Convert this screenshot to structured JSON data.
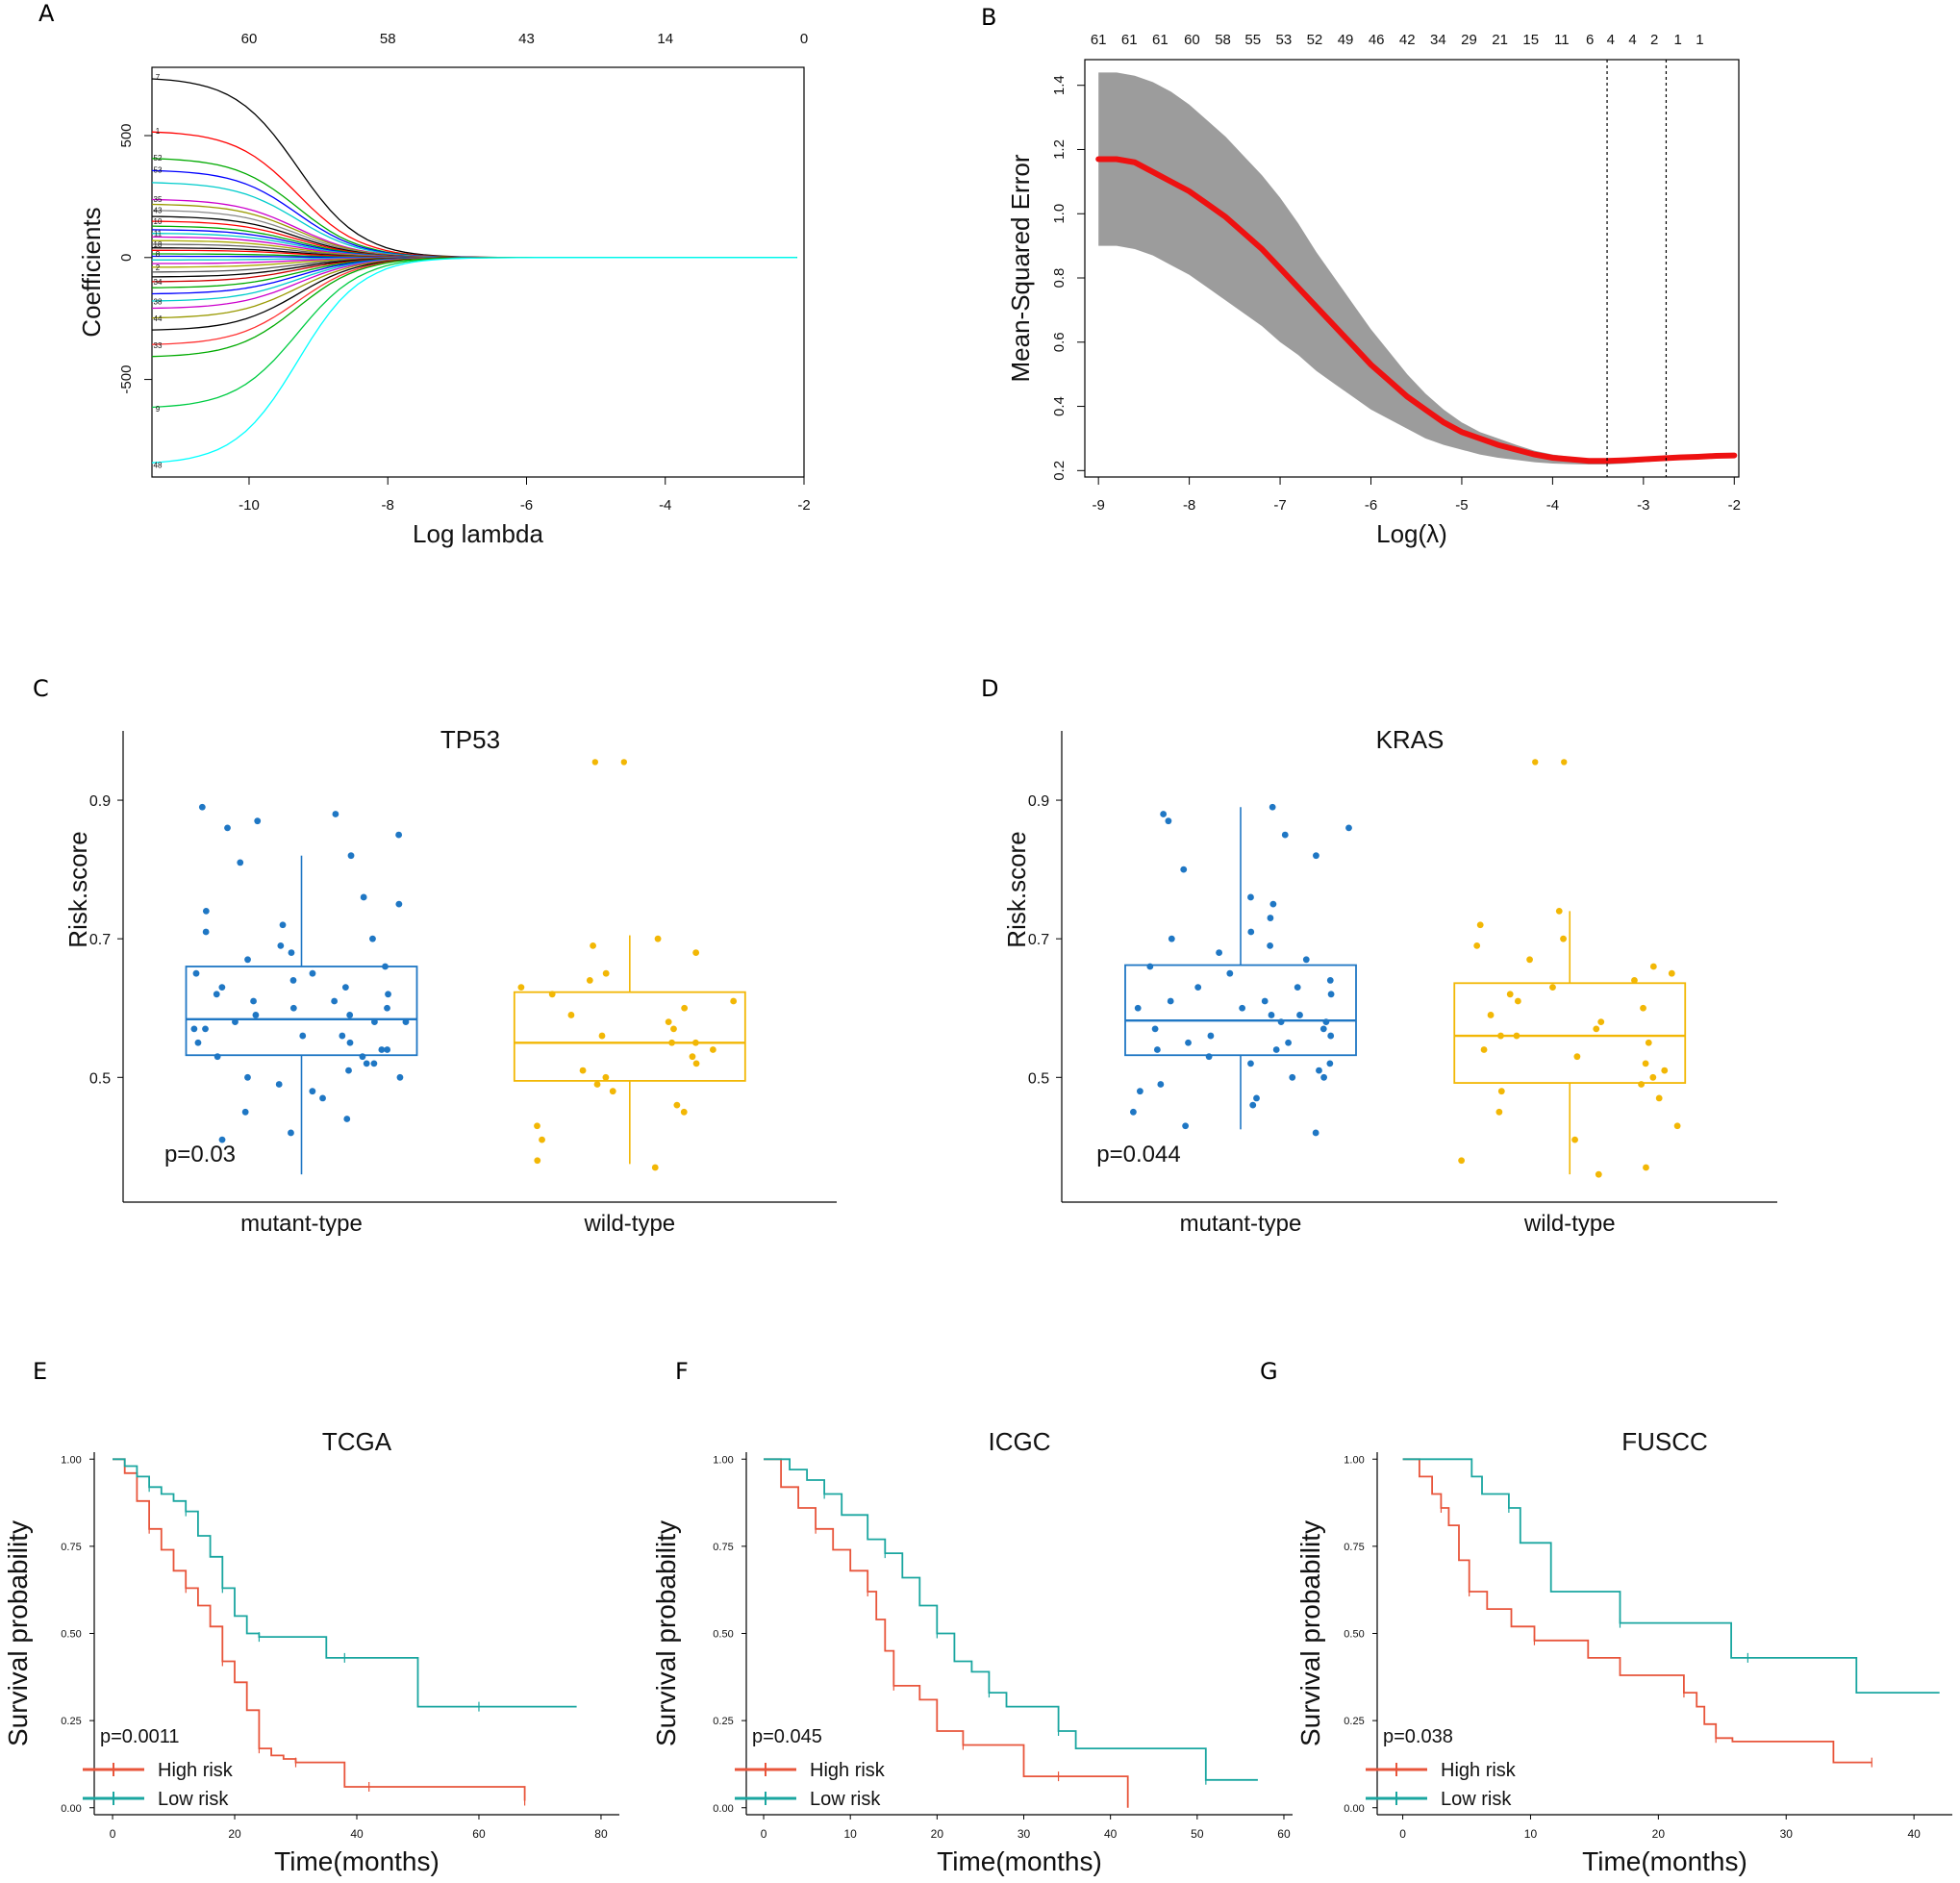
{
  "figure_labels": [
    "A",
    "B",
    "C",
    "D",
    "E",
    "F",
    "G"
  ],
  "colors": {
    "blue": "#1f77c4",
    "yellow": "#f2b705",
    "red": "#e8553b",
    "teal": "#1aa6a0",
    "mse_red": "#ee1111",
    "band": "#9c9c9c"
  },
  "chart_data": [
    {
      "panel": "A",
      "type": "line",
      "title": "",
      "xlabel": "Log lambda",
      "ylabel": "Coefficients",
      "xlim": [
        -11.4,
        -2
      ],
      "ylim": [
        -900,
        780
      ],
      "xticks": [
        -10,
        -8,
        -6,
        -4,
        -2
      ],
      "yticks": [
        -500,
        0,
        500
      ],
      "top_axis": {
        "positions": [
          -10,
          -8,
          -6,
          -4,
          -2
        ],
        "labels": [
          "60",
          "58",
          "43",
          "14",
          "0"
        ]
      },
      "paths_start_values": [
        740,
        520,
        410,
        360,
        310,
        240,
        220,
        195,
        170,
        150,
        130,
        115,
        100,
        85,
        70,
        55,
        40,
        30,
        15,
        5,
        -10,
        -25,
        -40,
        -60,
        -80,
        -100,
        -125,
        -150,
        -180,
        -210,
        -250,
        -300,
        -360,
        -410,
        -620,
        -850
      ],
      "path_label_values": [
        740,
        520,
        410,
        360,
        240,
        195,
        150,
        100,
        55,
        15,
        -40,
        -100,
        -180,
        -250,
        -360,
        -620,
        -850
      ],
      "path_labels": [
        "7",
        "1",
        "52",
        "53",
        "35",
        "43",
        "10",
        "11",
        "18",
        "8",
        "2",
        "34",
        "38",
        "44",
        "33",
        "9",
        "48"
      ]
    },
    {
      "panel": "B",
      "type": "line",
      "xlabel": "Log(λ)",
      "ylabel": "Mean-Squared Error",
      "xlim": [
        -9.15,
        -1.95
      ],
      "ylim": [
        0.18,
        1.48
      ],
      "xticks": [
        -9,
        -8,
        -7,
        -6,
        -5,
        -4,
        -3,
        -2
      ],
      "yticks": [
        0.2,
        0.4,
        0.6,
        0.8,
        1.0,
        1.2,
        1.4
      ],
      "top_axis": {
        "positions": [
          -9.0,
          -8.66,
          -8.32,
          -7.97,
          -7.63,
          -7.3,
          -6.96,
          -6.62,
          -6.28,
          -5.94,
          -5.6,
          -5.26,
          -4.92,
          -4.58,
          -4.24,
          -3.9,
          -3.59,
          -3.36,
          -3.12,
          -2.88,
          -2.62,
          -2.38
        ],
        "labels": [
          "61",
          "61",
          "61",
          "60",
          "58",
          "55",
          "53",
          "52",
          "49",
          "46",
          "42",
          "34",
          "29",
          "21",
          "15",
          "11",
          "6",
          "4",
          "4",
          "2",
          "1",
          "1"
        ]
      },
      "vlines": [
        -3.4,
        -2.75
      ],
      "x": [
        -9.0,
        -8.8,
        -8.6,
        -8.4,
        -8.2,
        -8.0,
        -7.8,
        -7.6,
        -7.4,
        -7.2,
        -7.0,
        -6.8,
        -6.6,
        -6.4,
        -6.2,
        -6.0,
        -5.8,
        -5.6,
        -5.4,
        -5.2,
        -5.0,
        -4.8,
        -4.6,
        -4.4,
        -4.2,
        -4.0,
        -3.8,
        -3.6,
        -3.4,
        -3.2,
        -3.0,
        -2.8,
        -2.6,
        -2.4,
        -2.2,
        -2.0
      ],
      "mse": [
        1.17,
        1.17,
        1.16,
        1.13,
        1.1,
        1.07,
        1.03,
        0.99,
        0.94,
        0.89,
        0.83,
        0.77,
        0.71,
        0.65,
        0.59,
        0.53,
        0.48,
        0.43,
        0.39,
        0.35,
        0.32,
        0.3,
        0.28,
        0.265,
        0.25,
        0.24,
        0.235,
        0.23,
        0.23,
        0.232,
        0.235,
        0.238,
        0.241,
        0.243,
        0.246,
        0.247
      ],
      "upper": [
        1.44,
        1.44,
        1.43,
        1.41,
        1.38,
        1.34,
        1.29,
        1.24,
        1.18,
        1.12,
        1.05,
        0.97,
        0.88,
        0.8,
        0.72,
        0.64,
        0.57,
        0.5,
        0.44,
        0.39,
        0.35,
        0.32,
        0.3,
        0.28,
        0.262,
        0.25,
        0.243,
        0.238,
        0.237,
        0.239,
        0.241,
        0.244,
        0.247,
        0.249,
        0.251,
        0.252
      ],
      "lower": [
        0.9,
        0.9,
        0.89,
        0.87,
        0.84,
        0.81,
        0.77,
        0.73,
        0.69,
        0.65,
        0.6,
        0.56,
        0.51,
        0.47,
        0.43,
        0.39,
        0.36,
        0.33,
        0.3,
        0.28,
        0.265,
        0.25,
        0.24,
        0.233,
        0.226,
        0.222,
        0.22,
        0.219,
        0.219,
        0.222,
        0.226,
        0.23,
        0.233,
        0.236,
        0.24,
        0.242
      ]
    },
    {
      "panel": "C",
      "type": "box",
      "title": "TP53",
      "ylabel": "Risk.score",
      "ylim": [
        0.32,
        1.0
      ],
      "yticks": [
        0.5,
        0.7,
        0.9
      ],
      "pvalue": "p=0.03",
      "groups": [
        {
          "name": "mutant-type",
          "q1": 0.532,
          "median": 0.584,
          "q3": 0.66,
          "whisker_low": 0.36,
          "whisker_high": 0.82,
          "points": [
            0.89,
            0.88,
            0.87,
            0.86,
            0.85,
            0.82,
            0.81,
            0.76,
            0.75,
            0.74,
            0.72,
            0.71,
            0.7,
            0.69,
            0.68,
            0.67,
            0.66,
            0.65,
            0.65,
            0.64,
            0.63,
            0.63,
            0.62,
            0.62,
            0.61,
            0.61,
            0.6,
            0.6,
            0.59,
            0.59,
            0.58,
            0.58,
            0.58,
            0.57,
            0.57,
            0.56,
            0.56,
            0.55,
            0.55,
            0.54,
            0.54,
            0.53,
            0.53,
            0.52,
            0.52,
            0.51,
            0.5,
            0.5,
            0.49,
            0.48,
            0.47,
            0.45,
            0.44,
            0.42,
            0.41
          ]
        },
        {
          "name": "wild-type",
          "q1": 0.495,
          "median": 0.55,
          "q3": 0.623,
          "whisker_low": 0.375,
          "whisker_high": 0.705,
          "points": [
            0.7,
            0.69,
            0.68,
            0.65,
            0.64,
            0.63,
            0.62,
            0.61,
            0.6,
            0.59,
            0.58,
            0.57,
            0.56,
            0.55,
            0.55,
            0.54,
            0.53,
            0.52,
            0.51,
            0.5,
            0.49,
            0.48,
            0.46,
            0.45,
            0.43,
            0.41,
            0.38,
            0.37
          ]
        },
        {
          "name": "outliers",
          "points": [
            0.955,
            0.955
          ]
        }
      ]
    },
    {
      "panel": "D",
      "type": "box",
      "title": "KRAS",
      "ylabel": "Risk.score",
      "ylim": [
        0.32,
        1.0
      ],
      "yticks": [
        0.5,
        0.7,
        0.9
      ],
      "pvalue": "p=0.044",
      "groups": [
        {
          "name": "mutant-type",
          "q1": 0.532,
          "median": 0.582,
          "q3": 0.662,
          "whisker_low": 0.425,
          "whisker_high": 0.89,
          "points": [
            0.89,
            0.88,
            0.87,
            0.86,
            0.85,
            0.82,
            0.8,
            0.76,
            0.75,
            0.73,
            0.71,
            0.7,
            0.69,
            0.68,
            0.67,
            0.66,
            0.65,
            0.64,
            0.63,
            0.63,
            0.62,
            0.61,
            0.61,
            0.6,
            0.6,
            0.59,
            0.59,
            0.58,
            0.58,
            0.57,
            0.57,
            0.56,
            0.56,
            0.55,
            0.55,
            0.54,
            0.54,
            0.53,
            0.52,
            0.52,
            0.51,
            0.5,
            0.5,
            0.49,
            0.48,
            0.47,
            0.46,
            0.45,
            0.43,
            0.42
          ]
        },
        {
          "name": "wild-type",
          "q1": 0.492,
          "median": 0.56,
          "q3": 0.636,
          "whisker_low": 0.36,
          "whisker_high": 0.74,
          "points": [
            0.74,
            0.72,
            0.7,
            0.69,
            0.67,
            0.66,
            0.65,
            0.64,
            0.63,
            0.62,
            0.61,
            0.6,
            0.59,
            0.58,
            0.57,
            0.56,
            0.56,
            0.55,
            0.54,
            0.53,
            0.52,
            0.51,
            0.5,
            0.49,
            0.48,
            0.47,
            0.45,
            0.43,
            0.41,
            0.38,
            0.37,
            0.36
          ]
        },
        {
          "name": "outliers",
          "points": [
            0.955,
            0.955
          ]
        }
      ]
    },
    {
      "panel": "E",
      "type": "line",
      "title": "TCGA",
      "xlabel": "Time(months)",
      "ylabel": "Survival probability",
      "xlim": [
        -3,
        83
      ],
      "ylim": [
        -0.02,
        1.02
      ],
      "xticks": [
        0,
        20,
        40,
        60,
        80
      ],
      "yticks": [
        0.0,
        0.25,
        0.5,
        0.75,
        1.0
      ],
      "pvalue": "p=0.0011",
      "legend": [
        "High risk",
        "Low risk"
      ],
      "series": [
        {
          "name": "High risk",
          "x": [
            0,
            2,
            4,
            6,
            8,
            10,
            12,
            14,
            16,
            18,
            20,
            22,
            24,
            26,
            28,
            30,
            34,
            38,
            42,
            50,
            58,
            67.5
          ],
          "y": [
            1.0,
            0.96,
            0.88,
            0.8,
            0.74,
            0.68,
            0.63,
            0.58,
            0.52,
            0.42,
            0.36,
            0.28,
            0.17,
            0.15,
            0.14,
            0.13,
            0.13,
            0.06,
            0.06,
            0.06,
            0.06,
            0.02
          ]
        },
        {
          "name": "Low risk",
          "x": [
            0,
            2,
            4,
            6,
            8,
            10,
            12,
            14,
            16,
            18,
            20,
            22,
            24,
            30,
            35,
            38,
            45,
            50,
            60,
            70,
            76
          ],
          "y": [
            1.0,
            0.98,
            0.95,
            0.92,
            0.9,
            0.88,
            0.85,
            0.78,
            0.72,
            0.63,
            0.55,
            0.5,
            0.49,
            0.49,
            0.43,
            0.43,
            0.43,
            0.29,
            0.29,
            0.29,
            0.29
          ]
        }
      ]
    },
    {
      "panel": "F",
      "type": "line",
      "title": "ICGC",
      "xlabel": "Time(months)",
      "ylabel": "Survival probability",
      "xlim": [
        -2,
        61
      ],
      "ylim": [
        -0.02,
        1.02
      ],
      "xticks": [
        0,
        10,
        20,
        30,
        40,
        50,
        60
      ],
      "yticks": [
        0.0,
        0.25,
        0.5,
        0.75,
        1.0
      ],
      "pvalue": "p=0.045",
      "legend": [
        "High risk",
        "Low risk"
      ],
      "series": [
        {
          "name": "High risk",
          "x": [
            0,
            2,
            4,
            6,
            8,
            10,
            12,
            13,
            14,
            15,
            18,
            20,
            23,
            27,
            30,
            34,
            42
          ],
          "y": [
            1.0,
            0.92,
            0.86,
            0.8,
            0.74,
            0.68,
            0.62,
            0.54,
            0.45,
            0.35,
            0.31,
            0.22,
            0.18,
            0.18,
            0.09,
            0.09,
            0.0
          ]
        },
        {
          "name": "Low risk",
          "x": [
            0,
            3,
            5,
            7,
            9,
            12,
            14,
            16,
            18,
            20,
            22,
            24,
            26,
            28,
            30,
            34,
            36,
            40,
            51,
            57
          ],
          "y": [
            1.0,
            0.97,
            0.94,
            0.9,
            0.84,
            0.77,
            0.73,
            0.66,
            0.58,
            0.5,
            0.42,
            0.39,
            0.33,
            0.29,
            0.29,
            0.22,
            0.17,
            0.17,
            0.08,
            0.08
          ]
        }
      ]
    },
    {
      "panel": "G",
      "type": "line",
      "title": "FUSCC",
      "xlabel": "Time(months)",
      "ylabel": "Survival probability",
      "xlim": [
        -2,
        43
      ],
      "ylim": [
        -0.02,
        1.02
      ],
      "xticks": [
        0,
        10,
        20,
        30,
        40
      ],
      "yticks": [
        0.0,
        0.25,
        0.5,
        0.75,
        1.0
      ],
      "pvalue": "p=0.038",
      "legend": [
        "High risk",
        "Low risk"
      ],
      "series": [
        {
          "name": "High risk",
          "x": [
            0,
            1.3,
            2.3,
            3,
            3.6,
            4.4,
            5.2,
            6.6,
            8.5,
            10.3,
            14.5,
            17,
            22,
            23,
            23.6,
            24.5,
            25.8,
            33.7,
            36.7
          ],
          "y": [
            1.0,
            0.95,
            0.9,
            0.86,
            0.81,
            0.71,
            0.62,
            0.57,
            0.52,
            0.48,
            0.43,
            0.38,
            0.33,
            0.29,
            0.24,
            0.2,
            0.19,
            0.13,
            0.13
          ]
        },
        {
          "name": "Low risk",
          "x": [
            0,
            5.4,
            6.2,
            8.3,
            9.2,
            11.6,
            17,
            21.2,
            25.7,
            27,
            35.5,
            42
          ],
          "y": [
            1.0,
            0.95,
            0.9,
            0.86,
            0.76,
            0.62,
            0.53,
            0.53,
            0.43,
            0.43,
            0.33,
            0.33
          ]
        }
      ]
    }
  ]
}
